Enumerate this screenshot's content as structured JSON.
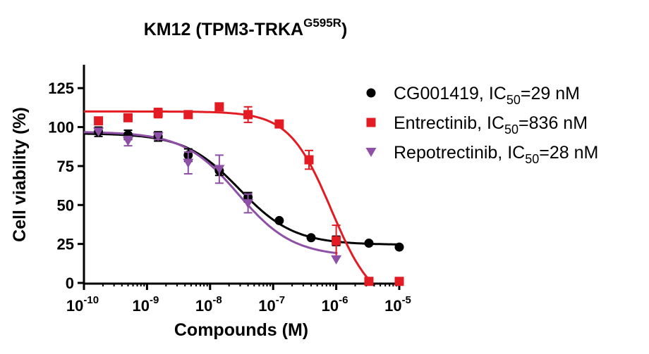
{
  "chart_data": {
    "type": "scatter",
    "title": {
      "main": "KM12 (TPM3-TRKA",
      "superscript": "G595R",
      "close": ")"
    },
    "xlabel": "Compounds (M)",
    "ylabel": "Cell viability (%)",
    "x_scale": "log10",
    "xlim": [
      1e-10,
      1e-05
    ],
    "ylim": [
      0,
      140
    ],
    "x_ticks": [
      {
        "base": "10",
        "exp": "-10"
      },
      {
        "base": "10",
        "exp": "-9"
      },
      {
        "base": "10",
        "exp": "-8"
      },
      {
        "base": "10",
        "exp": "-7"
      },
      {
        "base": "10",
        "exp": "-6"
      },
      {
        "base": "10",
        "exp": "-5"
      }
    ],
    "x_tick_values": [
      1e-10,
      1e-09,
      1e-08,
      1e-07,
      1e-06,
      1e-05
    ],
    "y_ticks": [
      "0",
      "25",
      "50",
      "75",
      "100",
      "125"
    ],
    "y_tick_values": [
      0,
      25,
      50,
      75,
      100,
      125
    ],
    "legend_position": "top-right",
    "series": [
      {
        "name": "CG001419",
        "legend": {
          "prefix": "CG001419, IC",
          "sub": "50",
          "suffix": "=29 nM"
        },
        "marker": "circle",
        "color": "#000000",
        "ic50": 2.9e-08,
        "fit": {
          "top": 96,
          "bottom": 24.5,
          "hill": 1.0
        },
        "points": [
          {
            "x": 1.7e-10,
            "y": 97,
            "err": 3
          },
          {
            "x": 5e-10,
            "y": 95,
            "err": 3
          },
          {
            "x": 1.5e-09,
            "y": 94,
            "err": 3
          },
          {
            "x": 4.5e-09,
            "y": 82,
            "err": 4
          },
          {
            "x": 1.4e-08,
            "y": 72,
            "err": 3
          },
          {
            "x": 4e-08,
            "y": 55,
            "err": 3
          },
          {
            "x": 1.25e-07,
            "y": 40,
            "err": 0
          },
          {
            "x": 4e-07,
            "y": 29,
            "err": 0
          },
          {
            "x": 1e-06,
            "y": 27,
            "err": 3
          },
          {
            "x": 3.3e-06,
            "y": 25.5,
            "err": 0
          },
          {
            "x": 1e-05,
            "y": 23,
            "err": 0
          }
        ]
      },
      {
        "name": "Entrectinib",
        "legend": {
          "prefix": "Entrectinib, IC",
          "sub": "50",
          "suffix": "=836 nM"
        },
        "marker": "square",
        "color": "#e31b23",
        "ic50": 8.36e-07,
        "fit": {
          "top": 110,
          "bottom": -16,
          "hill": 1.3
        },
        "points": [
          {
            "x": 1.7e-10,
            "y": 104,
            "err": 0
          },
          {
            "x": 5e-10,
            "y": 106,
            "err": 0
          },
          {
            "x": 1.5e-09,
            "y": 109,
            "err": 3
          },
          {
            "x": 4.5e-09,
            "y": 108,
            "err": 0
          },
          {
            "x": 1.4e-08,
            "y": 113,
            "err": 0
          },
          {
            "x": 4e-08,
            "y": 108,
            "err": 5
          },
          {
            "x": 1.25e-07,
            "y": 102,
            "err": 0
          },
          {
            "x": 3.7e-07,
            "y": 79,
            "err": 6
          },
          {
            "x": 1e-06,
            "y": 27,
            "err": 10
          },
          {
            "x": 3.3e-06,
            "y": 1,
            "err": 0
          },
          {
            "x": 1e-05,
            "y": 1,
            "err": 0
          }
        ]
      },
      {
        "name": "Repotrectinib",
        "legend": {
          "prefix": "Repotrectinib, IC",
          "sub": "50",
          "suffix": "=28 nM"
        },
        "marker": "triangle-down",
        "color": "#8e4fa6",
        "ic50": 2.8e-08,
        "fit": {
          "top": 97,
          "bottom": 17,
          "hill": 1.0
        },
        "points": [
          {
            "x": 1.7e-10,
            "y": 97,
            "err": 0
          },
          {
            "x": 5e-10,
            "y": 91,
            "err": 3
          },
          {
            "x": 1.5e-09,
            "y": 94,
            "err": 2
          },
          {
            "x": 4.5e-09,
            "y": 77,
            "err": 7
          },
          {
            "x": 1.4e-08,
            "y": 73,
            "err": 9
          },
          {
            "x": 4e-08,
            "y": 51,
            "err": 6
          },
          {
            "x": 1e-06,
            "y": 15,
            "err": 0
          }
        ]
      }
    ]
  }
}
